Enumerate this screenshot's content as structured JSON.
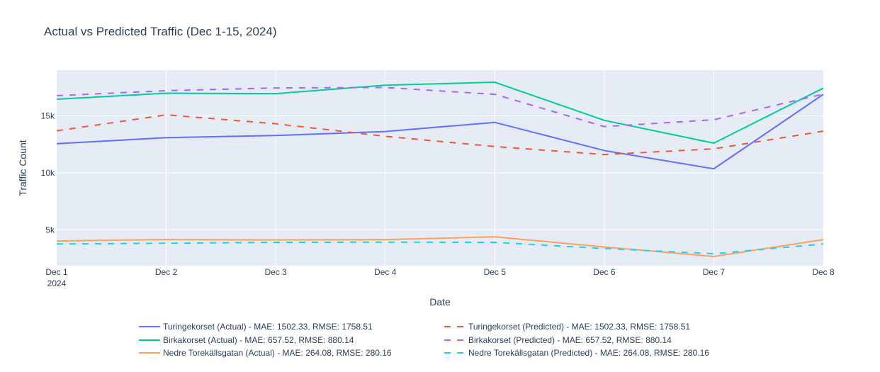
{
  "chart_data": {
    "type": "line",
    "title": "Actual vs Predicted Traffic (Dec 1-15, 2024)",
    "xlabel": "Date",
    "ylabel": "Traffic Count",
    "x": [
      "Dec 1",
      "Dec 2",
      "Dec 3",
      "Dec 4",
      "Dec 5",
      "Dec 6",
      "Dec 7",
      "Dec 8"
    ],
    "x_year_label": "2024",
    "ylim": [
      1850,
      19000
    ],
    "yticks": [
      5000,
      10000,
      15000
    ],
    "ytick_labels": [
      "5k",
      "10k",
      "15k"
    ],
    "grid": true,
    "legend_position": "bottom",
    "series": [
      {
        "name": "Turingekorset (Actual) - MAE: 1502.33, RMSE: 1758.51",
        "color": "#636efa",
        "dash": "solid",
        "values": [
          12550,
          13080,
          13270,
          13620,
          14420,
          11950,
          10350,
          16880
        ]
      },
      {
        "name": "Turingekorset (Predicted) - MAE: 1502.33, RMSE: 1758.51",
        "color": "#ef553b",
        "dash": "dash",
        "values": [
          13680,
          15080,
          14300,
          13200,
          12300,
          11600,
          12100,
          13650
        ]
      },
      {
        "name": "Birkakorset (Actual) - MAE: 657.52, RMSE: 880.14",
        "color": "#00cc96",
        "dash": "solid",
        "values": [
          16450,
          16980,
          16940,
          17680,
          17940,
          14600,
          12600,
          17430
        ]
      },
      {
        "name": "Birkakorset (Predicted) - MAE: 657.52, RMSE: 880.14",
        "color": "#ab63fa",
        "dash": "dash",
        "values": [
          16760,
          17200,
          17440,
          17480,
          16880,
          14050,
          14650,
          16900
        ]
      },
      {
        "name": "Nedre Torekällsgatan (Actual) - MAE: 264.08, RMSE: 280.16",
        "color": "#ffa15a",
        "dash": "solid",
        "values": [
          4020,
          4150,
          4110,
          4140,
          4380,
          3500,
          2660,
          4140
        ]
      },
      {
        "name": "Nedre Torekällsgatan (Predicted) - MAE: 264.08, RMSE: 280.16",
        "color": "#19d3f3",
        "dash": "dash",
        "values": [
          3760,
          3820,
          3900,
          3920,
          3900,
          3360,
          2900,
          3760
        ]
      }
    ]
  }
}
